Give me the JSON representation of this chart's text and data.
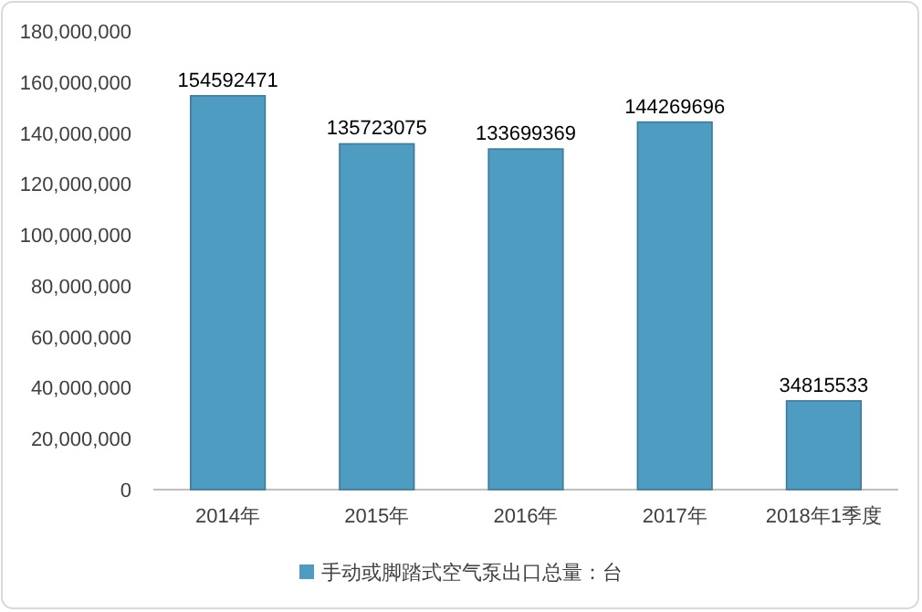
{
  "chart_data": {
    "type": "bar",
    "categories": [
      "2014年",
      "2015年",
      "2016年",
      "2017年",
      "2018年1季度"
    ],
    "series": [
      {
        "name": "手动或脚踏式空气泵出口总量：台",
        "color": "#4f9cc2",
        "values": [
          154592471,
          135723075,
          133699369,
          144269696,
          34815533
        ]
      }
    ],
    "ylim": [
      0,
      180000000
    ],
    "yticks": [
      {
        "value": 0,
        "label": "0"
      },
      {
        "value": 20000000,
        "label": "20,000,000"
      },
      {
        "value": 40000000,
        "label": "40,000,000"
      },
      {
        "value": 60000000,
        "label": "60,000,000"
      },
      {
        "value": 80000000,
        "label": "80,000,000"
      },
      {
        "value": 100000000,
        "label": "100,000,000"
      },
      {
        "value": 120000000,
        "label": "120,000,000"
      },
      {
        "value": 140000000,
        "label": "140,000,000"
      },
      {
        "value": 160000000,
        "label": "160,000,000"
      },
      {
        "value": 180000000,
        "label": "180,000,000"
      }
    ],
    "data_labels": true,
    "legend": "bottom",
    "grid": false
  }
}
